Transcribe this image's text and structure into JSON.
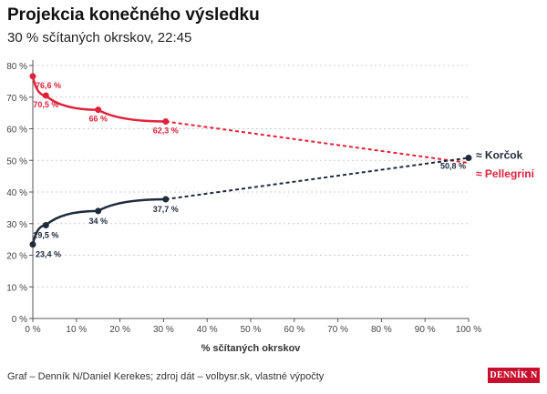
{
  "chart_data": {
    "type": "line",
    "title": "Projekcia konečného výsledku",
    "subtitle": "30 % sčítaných okrskov, 22:45",
    "xlabel": "% sčítaných okrskov",
    "ylabel": "",
    "xlim": [
      0,
      100
    ],
    "ylim": [
      0,
      80
    ],
    "xticks": [
      "0 %",
      "10 %",
      "20 %",
      "30 %",
      "40 %",
      "50 %",
      "60 %",
      "70 %",
      "80 %",
      "90 %",
      "100 %"
    ],
    "yticks": [
      "0 %",
      "10 %",
      "20 %",
      "30 %",
      "40 %",
      "50 %",
      "60 %",
      "70 %",
      "80 %"
    ],
    "grid": true,
    "series": [
      {
        "name": "≈ Pellegrini",
        "color": "#e0233a",
        "x": [
          0,
          3,
          15,
          30.5
        ],
        "values": [
          76.6,
          70.5,
          66,
          62.3
        ],
        "labels": [
          "76,6 %",
          "70,5 %",
          "66 %",
          "62,3 %"
        ],
        "projection": {
          "x": 100,
          "value": 49.2
        }
      },
      {
        "name": "≈ Korčok",
        "color": "#1f2a3c",
        "x": [
          0,
          3,
          15,
          30.5
        ],
        "values": [
          23.4,
          29.5,
          34,
          37.7
        ],
        "labels": [
          "23,4 %",
          "29,5 %",
          "34 %",
          "37,7 %"
        ],
        "projection": {
          "x": 100,
          "value": 50.8,
          "label": "50,8 %"
        }
      }
    ]
  },
  "footer": "Graf – Denník N/Daniel Kerekes; zdroj dát – volbysr.sk, vlastné výpočty",
  "logo": "DENNÍK N"
}
